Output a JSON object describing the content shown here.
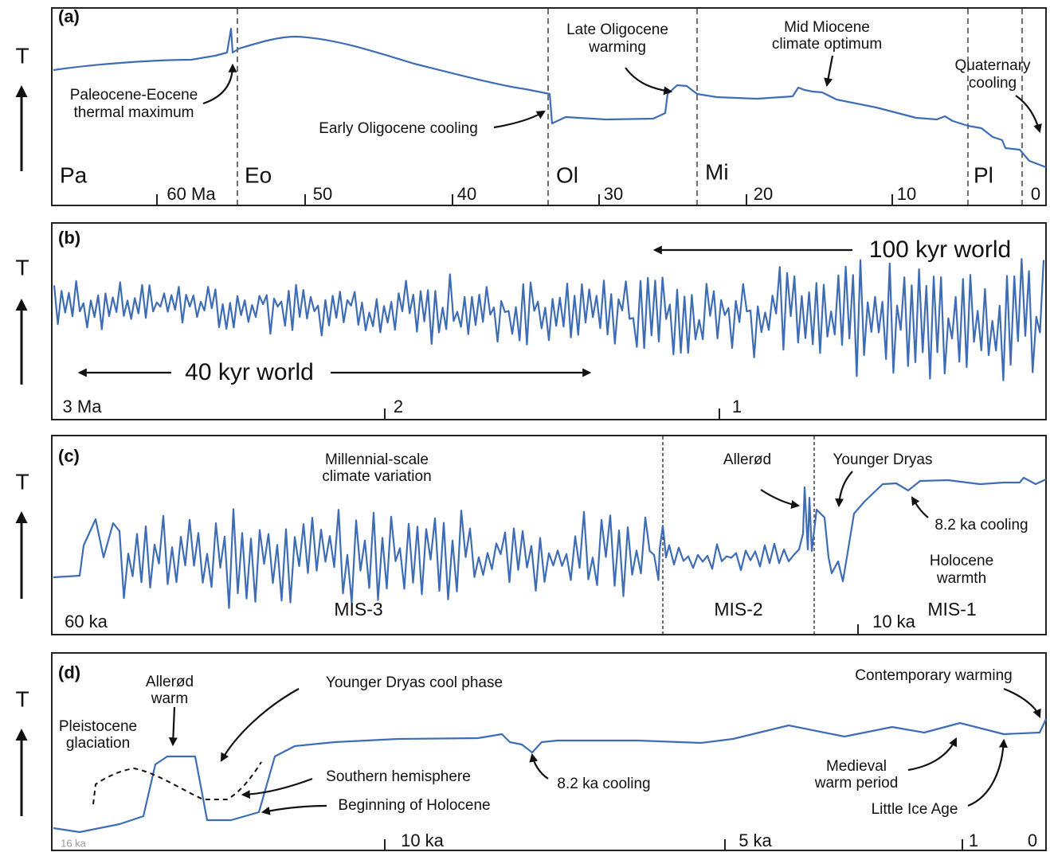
{
  "panels": [
    {
      "label": "(a)",
      "axis_label": "T",
      "eras": [
        "Pa",
        "Eo",
        "Ol",
        "Mi",
        "Pl"
      ],
      "ticks": [
        "60 Ma",
        "50",
        "40",
        "30",
        "20",
        "10",
        "0"
      ],
      "annotations": [
        [
          "Paleocene-Eocene",
          "thermal maximum"
        ],
        [
          "Early Oligocene cooling"
        ],
        [
          "Late Oligocene",
          "warming"
        ],
        [
          "Mid Miocene",
          "climate optimum"
        ],
        [
          "Quaternary",
          "cooling"
        ]
      ]
    },
    {
      "label": "(b)",
      "axis_label": "T",
      "ticks": [
        "3 Ma",
        "2",
        "1"
      ],
      "annotations": [
        [
          "100 kyr world"
        ],
        [
          "40 kyr world"
        ]
      ]
    },
    {
      "label": "(c)",
      "axis_label": "T",
      "stages": [
        "MIS-3",
        "MIS-2",
        "MIS-1"
      ],
      "ticks": [
        "60 ka",
        "10 ka"
      ],
      "annotations": [
        [
          "Millennial-scale",
          "climate variation"
        ],
        [
          "Allerød"
        ],
        [
          "Younger Dryas"
        ],
        [
          "8.2 ka cooling"
        ],
        [
          "Holocene",
          "warmth"
        ]
      ]
    },
    {
      "label": "(d)",
      "axis_label": "T",
      "ticks": [
        "16  ka",
        "10 ka",
        "5 ka",
        "1",
        "0"
      ],
      "annotations": [
        [
          "Allerød",
          "warm"
        ],
        [
          "Pleistocene",
          "glaciation"
        ],
        [
          "Younger Dryas cool phase"
        ],
        [
          "Southern hemisphere"
        ],
        [
          "Beginning of Holocene"
        ],
        [
          "8.2 ka cooling"
        ],
        [
          "Contemporary warming"
        ],
        [
          "Medieval",
          "warm period"
        ],
        [
          "Little Ice Age"
        ]
      ]
    }
  ]
}
